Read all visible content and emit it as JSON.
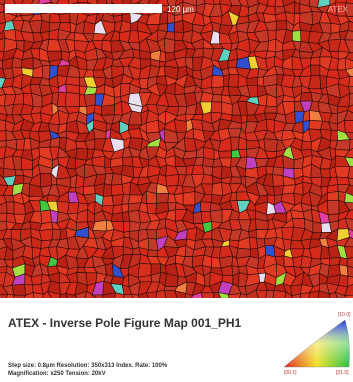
{
  "scale_bar": "120 µm",
  "watermark": "ATEX",
  "title": "ATEX - Inverse Pole Figure Map 001_PH1",
  "info": [
    "Step size: 0.8µm    Resolution: 350x313    Index. Rate: 100%",
    "Magnification: x250    Tension: 20kV"
  ],
  "ipf_key": {
    "top": "[10.0]",
    "left": "[00.1]",
    "right": "[21.0]"
  }
}
